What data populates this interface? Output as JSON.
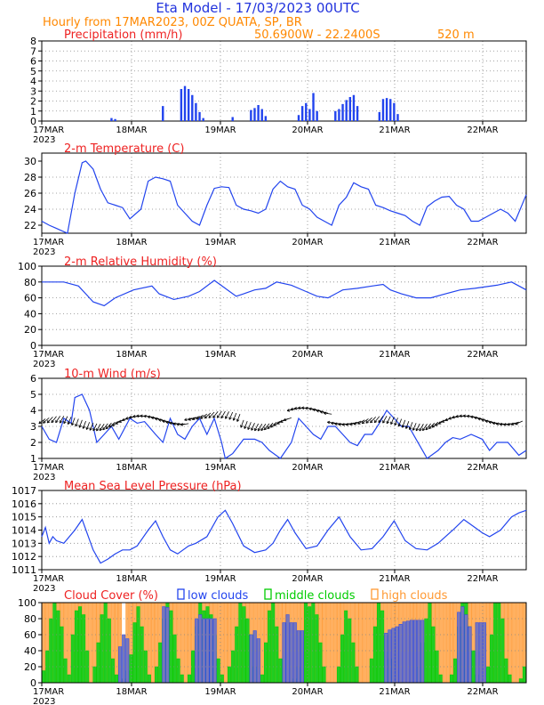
{
  "header": {
    "title": "Eta Model  -  17/03/2023 00UTC",
    "subtitle": "Hourly from 17MAR2023, 00Z  QUATA, SP, BR",
    "location": "50.6900W  -  22.2400S",
    "elevation": "520  m"
  },
  "colors": {
    "title": "#2233dd",
    "subtitle": "#ff8800",
    "panel_title": "#ee2222",
    "series": "#2244ee",
    "cloud_low": "#2244ee",
    "cloud_mid": "#00cc00",
    "cloud_high": "#ff9933"
  },
  "x_axis": {
    "ticks": [
      "17MAR",
      "18MAR",
      "19MAR",
      "20MAR",
      "21MAR",
      "22MAR"
    ],
    "year": "2023",
    "hours": [
      0,
      132
    ]
  },
  "chart_data": [
    {
      "id": "precip",
      "type": "bar",
      "title": "Precipitation (mm/h)",
      "ylim": [
        0,
        8
      ],
      "yticks": [
        0,
        1,
        2,
        3,
        4,
        5,
        6,
        7,
        8
      ],
      "x": [
        19,
        20,
        33,
        38,
        39,
        40,
        41,
        42,
        43,
        44,
        52,
        57,
        58,
        59,
        60,
        61,
        70,
        71,
        72,
        73,
        74,
        75,
        80,
        81,
        82,
        83,
        84,
        85,
        86,
        92,
        93,
        94,
        95,
        96,
        97
      ],
      "values": [
        0.3,
        0.2,
        1.5,
        3.2,
        3.5,
        3.2,
        2.6,
        1.8,
        0.9,
        0.3,
        0.4,
        1.1,
        1.3,
        1.6,
        1.2,
        0.5,
        0.6,
        1.5,
        1.8,
        1.2,
        2.8,
        1.0,
        1.0,
        1.2,
        1.7,
        2.1,
        2.4,
        2.6,
        1.5,
        0.9,
        2.2,
        2.3,
        2.2,
        1.8,
        0.7
      ]
    },
    {
      "id": "temp",
      "type": "line",
      "title": "2-m Temperature (C)",
      "ylim": [
        21,
        31
      ],
      "yticks": [
        22,
        24,
        26,
        28,
        30
      ],
      "x": [
        0,
        2,
        4,
        5,
        7,
        9,
        11,
        12,
        14,
        16,
        18,
        20,
        22,
        24,
        27,
        29,
        31,
        33,
        35,
        37,
        39,
        41,
        43,
        45,
        47,
        49,
        51,
        53,
        55,
        57,
        59,
        61,
        63,
        65,
        67,
        69,
        71,
        73,
        75,
        77,
        79,
        81,
        83,
        85,
        87,
        89,
        91,
        93,
        95,
        97,
        99,
        101,
        103,
        105,
        107,
        109,
        111,
        113,
        115,
        117,
        119,
        121,
        123,
        125,
        127,
        129,
        132
      ],
      "values": [
        22.5,
        22.0,
        21.6,
        21.4,
        21.0,
        26.0,
        29.8,
        30.0,
        29.0,
        26.5,
        24.8,
        24.5,
        24.2,
        22.8,
        24.0,
        27.5,
        28.0,
        27.8,
        27.5,
        24.5,
        23.5,
        22.5,
        22.0,
        24.5,
        26.6,
        26.8,
        26.7,
        24.5,
        24.0,
        23.8,
        23.5,
        24.0,
        26.5,
        27.5,
        26.8,
        26.5,
        24.5,
        24.0,
        23.0,
        22.5,
        22.0,
        24.5,
        25.5,
        27.3,
        26.8,
        26.5,
        24.5,
        24.2,
        23.8,
        23.5,
        23.2,
        22.5,
        22.0,
        24.3,
        25.0,
        25.5,
        25.6,
        24.5,
        24.0,
        22.5,
        22.5,
        23.0,
        23.5,
        24.0,
        23.5,
        22.5,
        25.8
      ]
    },
    {
      "id": "rh",
      "type": "line",
      "title": "2-m Relative Humidity (%)",
      "ylim": [
        0,
        100
      ],
      "yticks": [
        0,
        20,
        40,
        60,
        80,
        100
      ],
      "x": [
        0,
        6,
        10,
        12,
        14,
        17,
        20,
        25,
        30,
        32,
        36,
        40,
        43,
        47,
        50,
        53,
        55,
        58,
        61,
        64,
        68,
        72,
        75,
        78,
        82,
        86,
        90,
        93,
        95,
        98,
        102,
        106,
        110,
        114,
        118,
        121,
        124,
        128,
        132
      ],
      "values": [
        80,
        80,
        75,
        65,
        55,
        50,
        60,
        70,
        75,
        65,
        58,
        62,
        68,
        82,
        72,
        62,
        65,
        70,
        72,
        80,
        76,
        68,
        62,
        60,
        70,
        72,
        75,
        77,
        70,
        65,
        60,
        60,
        65,
        70,
        72,
        74,
        76,
        80,
        70
      ]
    },
    {
      "id": "wind",
      "type": "line",
      "title": "10-m Wind (m/s)",
      "ylim": [
        1,
        6
      ],
      "yticks": [
        1,
        2,
        3,
        4,
        5,
        6
      ],
      "x": [
        0,
        2,
        4,
        6,
        8,
        9,
        11,
        13,
        15,
        17,
        19,
        21,
        24,
        26,
        28,
        31,
        33,
        35,
        37,
        39,
        41,
        43,
        45,
        47,
        49,
        50,
        52,
        55,
        58,
        60,
        62,
        65,
        68,
        70,
        72,
        74,
        76,
        78,
        80,
        82,
        84,
        86,
        88,
        90,
        92,
        94,
        96,
        98,
        100,
        102,
        105,
        108,
        110,
        112,
        114,
        117,
        120,
        122,
        124,
        127,
        130,
        132
      ],
      "values": [
        3.0,
        2.2,
        2.0,
        3.5,
        3.2,
        4.8,
        5.0,
        4.0,
        2.0,
        2.5,
        3.0,
        2.2,
        3.5,
        3.2,
        3.3,
        2.5,
        2.0,
        3.5,
        2.5,
        2.2,
        3.0,
        3.5,
        2.5,
        3.5,
        2.0,
        1.0,
        1.3,
        2.2,
        2.2,
        2.0,
        1.5,
        1.0,
        2.0,
        3.5,
        3.0,
        2.5,
        2.2,
        3.0,
        3.0,
        2.5,
        2.0,
        1.8,
        2.5,
        2.5,
        3.2,
        4.0,
        3.5,
        3.0,
        3.0,
        2.2,
        1.0,
        1.5,
        2.0,
        2.3,
        2.2,
        2.5,
        2.2,
        1.5,
        2.0,
        2.0,
        1.2,
        1.5
      ]
    },
    {
      "id": "mslp",
      "type": "line",
      "title": "Mean Sea Level Pressure (hPa)",
      "ylim": [
        1011,
        1017
      ],
      "yticks": [
        1011,
        1012,
        1013,
        1014,
        1015,
        1016,
        1017
      ],
      "x": [
        0,
        1,
        2,
        3,
        4,
        6,
        9,
        11,
        14,
        16,
        18,
        20,
        22,
        24,
        26,
        29,
        31,
        33,
        35,
        37,
        40,
        42,
        45,
        48,
        50,
        52,
        55,
        58,
        61,
        63,
        65,
        67,
        69,
        72,
        75,
        78,
        81,
        84,
        87,
        90,
        93,
        96,
        99,
        102,
        105,
        108,
        112,
        115,
        118,
        120,
        122,
        125,
        128,
        130,
        132
      ],
      "values": [
        1013.5,
        1014.2,
        1013.0,
        1013.5,
        1013.2,
        1013.0,
        1014.0,
        1014.8,
        1012.5,
        1011.5,
        1011.8,
        1012.2,
        1012.5,
        1012.5,
        1012.8,
        1014.0,
        1014.7,
        1013.5,
        1012.5,
        1012.2,
        1012.8,
        1013.0,
        1013.5,
        1015.0,
        1015.5,
        1014.5,
        1012.8,
        1012.3,
        1012.5,
        1013.0,
        1014.0,
        1014.8,
        1013.8,
        1012.6,
        1012.8,
        1014.0,
        1015.0,
        1013.5,
        1012.5,
        1012.6,
        1013.5,
        1014.7,
        1013.2,
        1012.6,
        1012.5,
        1013.0,
        1014.0,
        1014.8,
        1014.2,
        1013.8,
        1013.5,
        1014.0,
        1015.0,
        1015.3,
        1015.5
      ]
    },
    {
      "id": "cloud",
      "type": "bar",
      "title": "Cloud Cover (%)",
      "legend": [
        "low clouds",
        "middle clouds",
        "high clouds"
      ],
      "ylim": [
        0,
        100
      ],
      "yticks": [
        0,
        20,
        40,
        60,
        80,
        100
      ],
      "series": [
        {
          "name": "high clouds",
          "values": [
            100,
            100,
            100,
            100,
            100,
            100,
            100,
            100,
            100,
            100,
            100,
            100,
            100,
            100,
            100,
            100,
            100,
            100,
            100,
            100,
            100,
            100,
            0,
            100,
            100,
            100,
            100,
            100,
            100,
            100,
            100,
            100,
            100,
            100,
            100,
            100,
            100,
            100,
            100,
            100,
            100,
            100,
            100,
            100,
            100,
            100,
            100,
            100,
            100,
            100,
            100,
            100,
            100,
            100,
            100,
            100,
            100,
            100,
            100,
            100,
            100,
            100,
            100,
            100,
            100,
            100,
            100,
            100,
            100,
            100,
            100,
            100,
            100,
            100,
            100,
            100,
            100,
            100,
            100,
            100,
            100,
            100,
            100,
            100,
            100,
            100,
            100,
            100,
            100,
            100,
            100,
            100,
            100,
            100,
            100,
            100,
            100,
            100,
            100,
            100,
            100,
            100,
            100,
            100,
            100,
            100,
            100,
            100,
            100,
            100,
            100,
            100,
            100,
            100,
            100,
            100,
            100,
            100,
            100,
            100,
            100,
            100,
            100,
            100,
            100,
            100,
            100,
            100,
            100,
            100,
            100,
            100,
            100
          ]
        },
        {
          "name": "middle clouds",
          "values": [
            15,
            40,
            80,
            100,
            90,
            70,
            30,
            10,
            60,
            90,
            95,
            85,
            40,
            0,
            20,
            50,
            85,
            100,
            80,
            30,
            10,
            0,
            5,
            15,
            35,
            75,
            95,
            70,
            40,
            10,
            0,
            20,
            50,
            80,
            100,
            90,
            60,
            30,
            10,
            0,
            10,
            40,
            70,
            100,
            90,
            95,
            85,
            60,
            30,
            10,
            0,
            20,
            40,
            70,
            100,
            95,
            80,
            60,
            20,
            0,
            10,
            50,
            90,
            100,
            70,
            30,
            10,
            0,
            0,
            5,
            20,
            50,
            100,
            95,
            100,
            85,
            50,
            20,
            0,
            0,
            0,
            20,
            60,
            90,
            80,
            50,
            20,
            0,
            0,
            0,
            30,
            70,
            100,
            90,
            60,
            30,
            0,
            0,
            0,
            0,
            0,
            0,
            0,
            20,
            50,
            80,
            100,
            70,
            40,
            10,
            0,
            0,
            10,
            30,
            70,
            100,
            100,
            70,
            40,
            10,
            0,
            0,
            20,
            60,
            100,
            100,
            80,
            30,
            10,
            0,
            0,
            5,
            20
          ]
        },
        {
          "name": "low clouds",
          "values": [
            0,
            0,
            0,
            0,
            0,
            0,
            0,
            0,
            0,
            0,
            0,
            0,
            0,
            0,
            0,
            0,
            0,
            0,
            0,
            0,
            0,
            45,
            60,
            55,
            0,
            0,
            0,
            0,
            0,
            0,
            0,
            0,
            0,
            95,
            94,
            0,
            0,
            0,
            0,
            0,
            0,
            0,
            80,
            85,
            80,
            80,
            80,
            80,
            0,
            0,
            0,
            0,
            0,
            0,
            0,
            0,
            0,
            60,
            65,
            55,
            0,
            0,
            0,
            0,
            0,
            0,
            75,
            85,
            75,
            75,
            65,
            65,
            0,
            0,
            0,
            0,
            0,
            0,
            0,
            0,
            0,
            0,
            0,
            0,
            0,
            0,
            0,
            0,
            0,
            0,
            0,
            0,
            0,
            0,
            62,
            66,
            68,
            70,
            73,
            76,
            77,
            78,
            78,
            78,
            78,
            0,
            0,
            0,
            0,
            0,
            0,
            0,
            0,
            0,
            88,
            95,
            85,
            70,
            0,
            75,
            75,
            75,
            0,
            0,
            0,
            0,
            0,
            0,
            0,
            0,
            0,
            0,
            0
          ]
        }
      ]
    }
  ]
}
